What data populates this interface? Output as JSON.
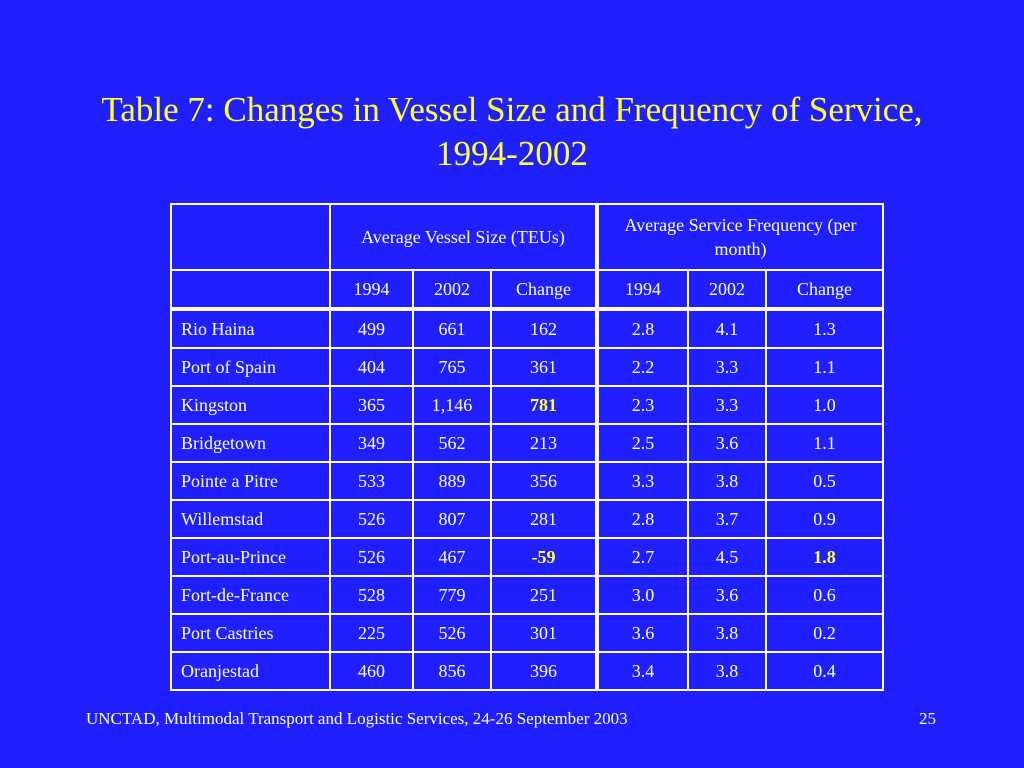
{
  "slide": {
    "title": "Table 7: Changes in Vessel Size and Frequency of Service, 1994-2002",
    "footer": "UNCTAD, Multimodal Transport and Logistic Services, 24-26 September 2003",
    "page_number": "25",
    "highlight_color": "#ffff33",
    "background_color": "#1f1fff"
  },
  "table": {
    "group_headers": [
      "Average Vessel Size (TEUs)",
      "Average Service Frequency (per month)"
    ],
    "sub_headers": [
      "1994",
      "2002",
      "Change",
      "1994",
      "2002",
      "Change"
    ],
    "rows": [
      {
        "port": "Rio Haina",
        "size_1994": "499",
        "size_2002": "661",
        "size_change": "162",
        "freq_1994": "2.8",
        "freq_2002": "4.1",
        "freq_change": "1.3"
      },
      {
        "port": "Port of Spain",
        "size_1994": "404",
        "size_2002": "765",
        "size_change": "361",
        "freq_1994": "2.2",
        "freq_2002": "3.3",
        "freq_change": "1.1"
      },
      {
        "port": "Kingston",
        "size_1994": "365",
        "size_2002": "1,146",
        "size_change": "781",
        "freq_1994": "2.3",
        "freq_2002": "3.3",
        "freq_change": "1.0"
      },
      {
        "port": "Bridgetown",
        "size_1994": "349",
        "size_2002": "562",
        "size_change": "213",
        "freq_1994": "2.5",
        "freq_2002": "3.6",
        "freq_change": "1.1"
      },
      {
        "port": "Pointe a Pitre",
        "size_1994": "533",
        "size_2002": "889",
        "size_change": "356",
        "freq_1994": "3.3",
        "freq_2002": "3.8",
        "freq_change": "0.5"
      },
      {
        "port": "Willemstad",
        "size_1994": "526",
        "size_2002": "807",
        "size_change": "281",
        "freq_1994": "2.8",
        "freq_2002": "3.7",
        "freq_change": "0.9"
      },
      {
        "port": "Port-au-Prince",
        "size_1994": "526",
        "size_2002": "467",
        "size_change": "-59",
        "freq_1994": "2.7",
        "freq_2002": "4.5",
        "freq_change": "1.8"
      },
      {
        "port": "Fort-de-France",
        "size_1994": "528",
        "size_2002": "779",
        "size_change": "251",
        "freq_1994": "3.0",
        "freq_2002": "3.6",
        "freq_change": "0.6"
      },
      {
        "port": "Port Castries",
        "size_1994": "225",
        "size_2002": "526",
        "size_change": "301",
        "freq_1994": "3.6",
        "freq_2002": "3.8",
        "freq_change": "0.2"
      },
      {
        "port": "Oranjestad",
        "size_1994": "460",
        "size_2002": "856",
        "size_change": "396",
        "freq_1994": "3.4",
        "freq_2002": "3.8",
        "freq_change": "0.4"
      }
    ],
    "highlighted_cells": [
      {
        "port": "Kingston",
        "column": "size_change"
      },
      {
        "port": "Port-au-Prince",
        "column": "size_change"
      },
      {
        "port": "Port-au-Prince",
        "column": "freq_change"
      }
    ]
  }
}
